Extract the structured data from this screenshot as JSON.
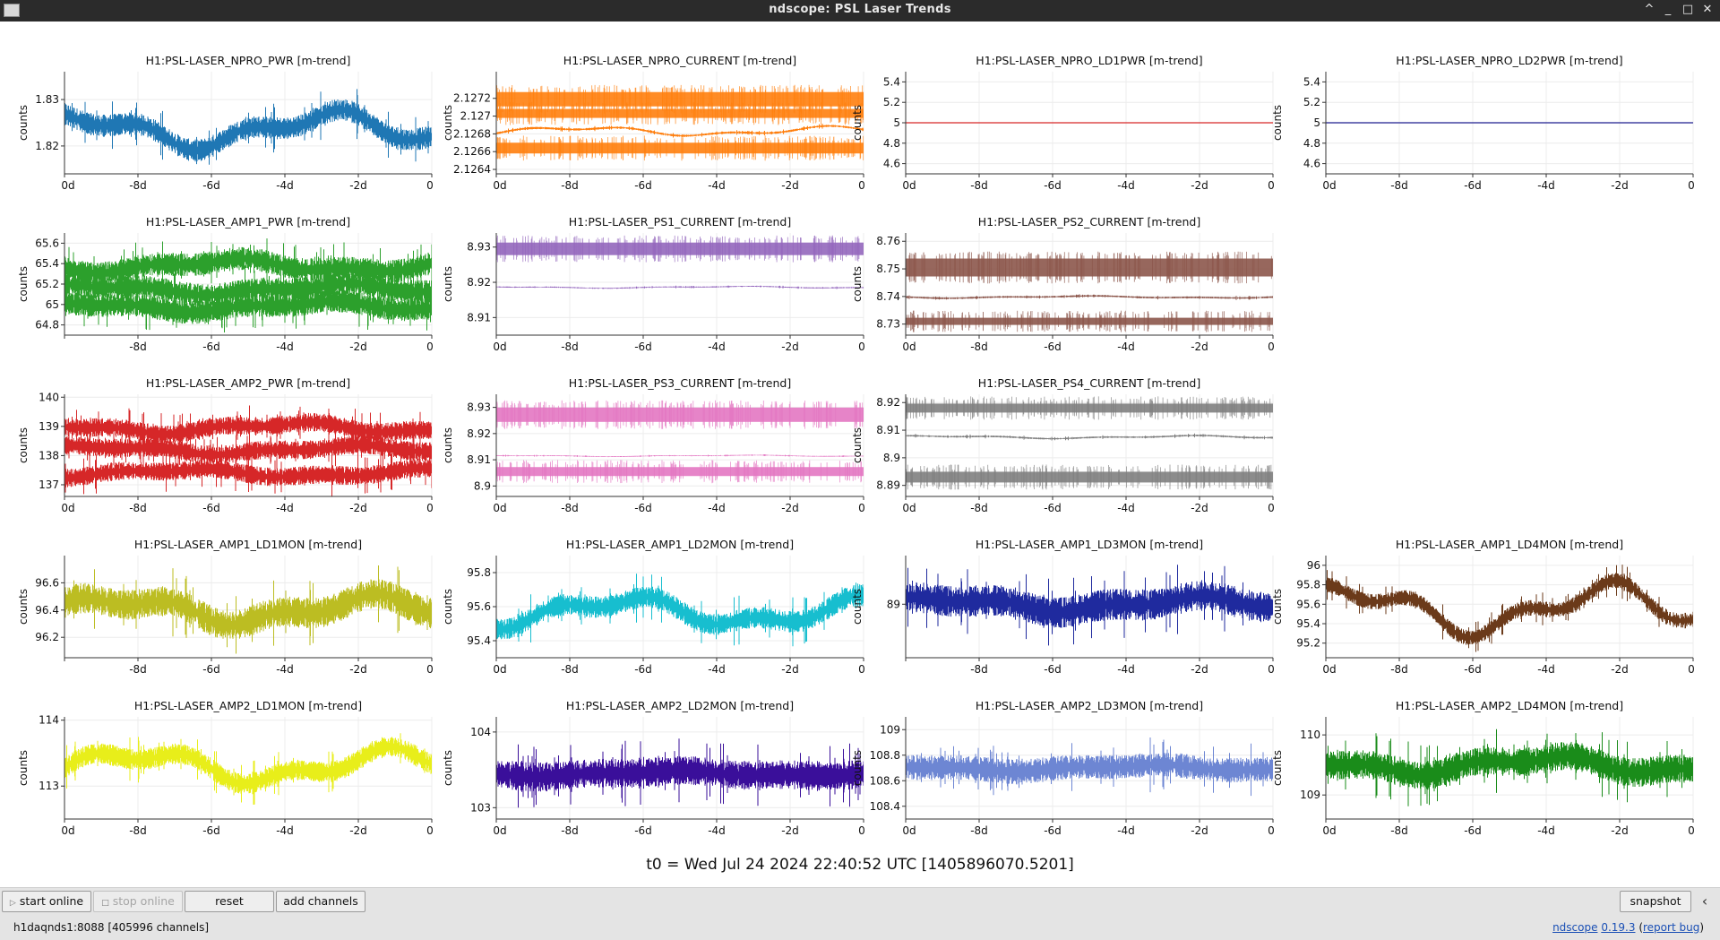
{
  "window": {
    "title": "ndscope: PSL Laser Trends",
    "icons": [
      "app-icon",
      "keep-above-icon",
      "minimize-icon",
      "maximize-icon",
      "close-icon"
    ],
    "buttons": [
      "^",
      "_",
      "□",
      "✕"
    ]
  },
  "t0_label": "t0 = Wed Jul 24 2024 22:40:52 UTC [1405896070.5201]",
  "toolbar": {
    "start_online": "start online",
    "stop_online": "stop online",
    "reset": "reset",
    "add_channels": "add channels",
    "snapshot": "snapshot",
    "menu_icon": "‹"
  },
  "status": {
    "server": "h1daqnds1:8088  [405996 channels]",
    "app_name": "ndscope",
    "version": "0.19.3",
    "report_bug": "report bug"
  },
  "chart_data": [
    {
      "type": "line",
      "title": "H1:PSL-LASER_NPRO_PWR [m-trend]",
      "ylabel": "counts",
      "color": "#1f77b4",
      "xlim": [
        -10,
        0
      ],
      "ylim": [
        1.814,
        1.836
      ],
      "yticks": [
        1.82,
        1.83
      ],
      "xticks": [
        "0d",
        "-8d",
        "-6d",
        "-4d",
        "-2d",
        "0"
      ],
      "bands": [
        {
          "center": 1.8235,
          "spread": 0.003,
          "width": 3,
          "noise": 0.0015
        }
      ]
    },
    {
      "type": "line",
      "title": "H1:PSL-LASER_NPRO_CURRENT [m-trend]",
      "ylabel": "counts",
      "color": "#ff7f0e",
      "xlim": [
        -10,
        0
      ],
      "ylim": [
        2.12635,
        2.1275
      ],
      "yticks": [
        2.1264,
        2.1266,
        2.1268,
        2.127,
        2.1272
      ],
      "xticks": [
        "0d",
        "-8d",
        "-6d",
        "-4d",
        "-2d",
        "0"
      ],
      "bands": [
        {
          "center": 2.12719,
          "spread": 0,
          "width": 16,
          "noise": 0
        },
        {
          "center": 2.12703,
          "spread": 0,
          "width": 10,
          "noise": 0
        },
        {
          "center": 2.12683,
          "spread": 4e-05,
          "width": 3,
          "noise": 8e-06
        },
        {
          "center": 2.12664,
          "spread": 0,
          "width": 12,
          "noise": 0
        }
      ]
    },
    {
      "type": "line",
      "title": "H1:PSL-LASER_NPRO_LD1PWR [m-trend]",
      "ylabel": "counts",
      "color": "#d62728",
      "xlim": [
        -10,
        0
      ],
      "ylim": [
        4.5,
        5.5
      ],
      "yticks": [
        4.6,
        4.8,
        5,
        5.2,
        5.4
      ],
      "xticks": [
        "0d",
        "-8d",
        "-6d",
        "-4d",
        "-2d",
        "0"
      ],
      "bands": [
        {
          "center": 5,
          "spread": 0,
          "width": 1,
          "noise": 0
        }
      ]
    },
    {
      "type": "line",
      "title": "H1:PSL-LASER_NPRO_LD2PWR [m-trend]",
      "ylabel": "counts",
      "color": "#1f1f8f",
      "xlim": [
        -10,
        0
      ],
      "ylim": [
        4.5,
        5.5
      ],
      "yticks": [
        4.6,
        4.8,
        5,
        5.2,
        5.4
      ],
      "xticks": [
        "0d",
        "-8d",
        "-6d",
        "-4d",
        "-2d",
        "0"
      ],
      "bands": [
        {
          "center": 5,
          "spread": 0,
          "width": 1,
          "noise": 0
        }
      ]
    },
    {
      "type": "line",
      "title": "H1:PSL-LASER_AMP1_PWR [m-trend]",
      "ylabel": "counts",
      "color": "#2ca02c",
      "xlim": [
        -10,
        0
      ],
      "ylim": [
        64.7,
        65.7
      ],
      "yticks": [
        64.8,
        65,
        65.2,
        65.4,
        65.6
      ],
      "xticks": [
        "",
        "-8d",
        "-6d",
        "-4d",
        "-2d",
        "0"
      ],
      "bands": [
        {
          "center": 65.38,
          "spread": 0.05,
          "width": 2,
          "noise": 0.07
        },
        {
          "center": 65.15,
          "spread": 0.04,
          "width": 2,
          "noise": 0.07
        },
        {
          "center": 64.98,
          "spread": 0.04,
          "width": 2,
          "noise": 0.07
        }
      ]
    },
    {
      "type": "line",
      "title": "H1:PSL-LASER_PS1_CURRENT [m-trend]",
      "ylabel": "counts",
      "color": "#9467bd",
      "xlim": [
        -10,
        0
      ],
      "ylim": [
        8.905,
        8.934
      ],
      "yticks": [
        8.91,
        8.92,
        8.93
      ],
      "xticks": [
        "0d",
        "-8d",
        "-6d",
        "-4d",
        "-2d",
        "0"
      ],
      "bands": [
        {
          "center": 8.9295,
          "spread": 0,
          "width": 14,
          "noise": 0
        },
        {
          "center": 8.9186,
          "spread": 0.0002,
          "width": 2,
          "noise": 0.0001
        }
      ]
    },
    {
      "type": "line",
      "title": "H1:PSL-LASER_PS2_CURRENT [m-trend]",
      "ylabel": "counts",
      "color": "#8c564b",
      "xlim": [
        -10,
        0
      ],
      "ylim": [
        8.726,
        8.763
      ],
      "yticks": [
        8.73,
        8.74,
        8.75,
        8.76
      ],
      "xticks": [
        "0d",
        "-8d",
        "-6d",
        "-4d",
        "-2d",
        "0"
      ],
      "bands": [
        {
          "center": 8.7505,
          "spread": 0,
          "width": 20,
          "noise": 0
        },
        {
          "center": 8.7398,
          "spread": 0.0003,
          "width": 2,
          "noise": 0.0002
        },
        {
          "center": 8.731,
          "spread": 0,
          "width": 8,
          "noise": 0
        }
      ]
    },
    null,
    {
      "type": "line",
      "title": "H1:PSL-LASER_AMP2_PWR [m-trend]",
      "ylabel": "counts",
      "color": "#d62728",
      "xlim": [
        -10,
        0
      ],
      "ylim": [
        136.6,
        140.1
      ],
      "yticks": [
        137,
        138,
        139,
        140
      ],
      "xticks": [
        "0d",
        "-8d",
        "-6d",
        "-4d",
        "-2d",
        "0"
      ],
      "bands": [
        {
          "center": 138.95,
          "spread": 0.15,
          "width": 3,
          "noise": 0.2
        },
        {
          "center": 138.2,
          "spread": 0.12,
          "width": 3,
          "noise": 0.2
        },
        {
          "center": 137.4,
          "spread": 0.12,
          "width": 3,
          "noise": 0.2
        }
      ]
    },
    {
      "type": "line",
      "title": "H1:PSL-LASER_PS3_CURRENT [m-trend]",
      "ylabel": "counts",
      "color": "#e377c2",
      "xlim": [
        -10,
        0
      ],
      "ylim": [
        8.896,
        8.935
      ],
      "yticks": [
        8.9,
        8.91,
        8.92,
        8.93
      ],
      "xticks": [
        "0d",
        "-8d",
        "-6d",
        "-4d",
        "-2d",
        "0"
      ],
      "bands": [
        {
          "center": 8.9272,
          "spread": 0,
          "width": 16,
          "noise": 0
        },
        {
          "center": 8.9115,
          "spread": 0.0002,
          "width": 2,
          "noise": 0.0001
        },
        {
          "center": 8.9055,
          "spread": 0,
          "width": 10,
          "noise": 0
        }
      ]
    },
    {
      "type": "line",
      "title": "H1:PSL-LASER_PS4_CURRENT [m-trend]",
      "ylabel": "counts",
      "color": "#7f7f7f",
      "xlim": [
        -10,
        0
      ],
      "ylim": [
        8.886,
        8.923
      ],
      "yticks": [
        8.89,
        8.9,
        8.91,
        8.92
      ],
      "xticks": [
        "0d",
        "-8d",
        "-6d",
        "-4d",
        "-2d",
        "0"
      ],
      "bands": [
        {
          "center": 8.918,
          "spread": 0,
          "width": 10,
          "noise": 0
        },
        {
          "center": 8.9075,
          "spread": 0.0004,
          "width": 2,
          "noise": 0.0002
        },
        {
          "center": 8.893,
          "spread": 0,
          "width": 12,
          "noise": 0
        }
      ]
    },
    null,
    {
      "type": "line",
      "title": "H1:PSL-LASER_AMP1_LD1MON [m-trend]",
      "ylabel": "counts",
      "color": "#bcbd22",
      "xlim": [
        -10,
        0
      ],
      "ylim": [
        96.05,
        96.8
      ],
      "yticks": [
        96.2,
        96.4,
        96.6
      ],
      "xticks": [
        "",
        "-8d",
        "-6d",
        "-4d",
        "-2d",
        "0"
      ],
      "bands": [
        {
          "center": 96.4,
          "spread": 0.08,
          "width": 3,
          "noise": 0.07
        }
      ]
    },
    {
      "type": "line",
      "title": "H1:PSL-LASER_AMP1_LD2MON [m-trend]",
      "ylabel": "counts",
      "color": "#17becf",
      "xlim": [
        -10,
        0
      ],
      "ylim": [
        95.3,
        95.9
      ],
      "yticks": [
        95.4,
        95.6,
        95.8
      ],
      "xticks": [
        "0d",
        "-8d",
        "-6d",
        "-4d",
        "-2d",
        "0"
      ],
      "bands": [
        {
          "center": 95.57,
          "spread": 0.07,
          "width": 3,
          "noise": 0.04
        }
      ]
    },
    {
      "type": "line",
      "title": "H1:PSL-LASER_AMP1_LD3MON [m-trend]",
      "ylabel": "counts",
      "color": "#1f2a9e",
      "xlim": [
        -10,
        0
      ],
      "ylim": [
        88.45,
        89.5
      ],
      "yticks": [
        89
      ],
      "xticks": [
        "",
        "-8d",
        "-6d",
        "-4d",
        "-2d",
        "0"
      ],
      "bands": [
        {
          "center": 89.0,
          "spread": 0.06,
          "width": 3,
          "noise": 0.1
        }
      ]
    },
    {
      "type": "line",
      "title": "H1:PSL-LASER_AMP1_LD4MON [m-trend]",
      "ylabel": "counts",
      "color": "#6b3a1a",
      "xlim": [
        -10,
        0
      ],
      "ylim": [
        95.05,
        96.1
      ],
      "yticks": [
        95.2,
        95.4,
        95.6,
        95.8,
        96
      ],
      "xticks": [
        "0d",
        "-8d",
        "-6d",
        "-4d",
        "-2d",
        "0"
      ],
      "bands": [
        {
          "center": 95.55,
          "spread": 0.2,
          "width": 3,
          "noise": 0.05
        }
      ]
    },
    {
      "type": "line",
      "title": "H1:PSL-LASER_AMP2_LD1MON [m-trend]",
      "ylabel": "counts",
      "color": "#e8ee1a",
      "xlim": [
        -10,
        0
      ],
      "ylim": [
        112.5,
        114.05
      ],
      "yticks": [
        113,
        114
      ],
      "xticks": [
        "0d",
        "-8d",
        "-6d",
        "-4d",
        "-2d",
        "0"
      ],
      "bands": [
        {
          "center": 113.3,
          "spread": 0.2,
          "width": 3,
          "noise": 0.1
        }
      ]
    },
    {
      "type": "line",
      "title": "H1:PSL-LASER_AMP2_LD2MON [m-trend]",
      "ylabel": "counts",
      "color": "#3a0f9a",
      "xlim": [
        -10,
        0
      ],
      "ylim": [
        102.85,
        104.2
      ],
      "yticks": [
        103,
        104
      ],
      "xticks": [
        "0d",
        "-8d",
        "-6d",
        "-4d",
        "-2d",
        "0"
      ],
      "bands": [
        {
          "center": 103.45,
          "spread": 0.03,
          "width": 3,
          "noise": 0.12
        }
      ]
    },
    {
      "type": "line",
      "title": "H1:PSL-LASER_AMP2_LD3MON [m-trend]",
      "ylabel": "counts",
      "color": "#6d86d3",
      "xlim": [
        -10,
        0
      ],
      "ylim": [
        108.3,
        109.1
      ],
      "yticks": [
        108.4,
        108.6,
        108.8,
        109
      ],
      "xticks": [
        "0d",
        "-8d",
        "-6d",
        "-4d",
        "-2d",
        "0"
      ],
      "bands": [
        {
          "center": 108.7,
          "spread": 0.02,
          "width": 3,
          "noise": 0.06
        }
      ]
    },
    {
      "type": "line",
      "title": "H1:PSL-LASER_AMP2_LD4MON [m-trend]",
      "ylabel": "counts",
      "color": "#1a8c1a",
      "xlim": [
        -10,
        0
      ],
      "ylim": [
        108.6,
        110.3
      ],
      "yticks": [
        109,
        110
      ],
      "xticks": [
        "0d",
        "-8d",
        "-6d",
        "-4d",
        "-2d",
        "0"
      ],
      "bands": [
        {
          "center": 109.5,
          "spread": 0.12,
          "width": 3,
          "noise": 0.15
        }
      ]
    }
  ]
}
